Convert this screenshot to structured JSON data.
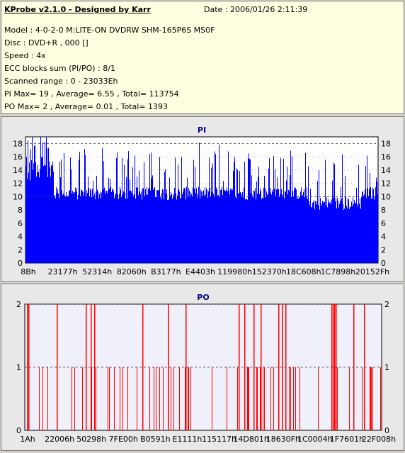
{
  "header": {
    "title": "KProbe v2.1.0 - Designed by Karr",
    "date": "Date : 2006/01/26 2:11:39",
    "lines": [
      "Model : 4-0-2-0 M:LITE-ON DVDRW SHM-165P6S MS0F",
      "Disc : DVD+R , 000 []",
      "Speed : 4x",
      "ECC blocks sum (PI/PO) : 8/1",
      "Scanned range : 0 - 23033Eh",
      "PI Max= 19 , Average= 6.55 , Total= 113754",
      "PO Max= 2 , Average= 0.01 , Total= 1393"
    ]
  },
  "chart_data": [
    {
      "type": "bar",
      "title": "PI",
      "ylim": [
        0,
        19
      ],
      "yticks": [
        "0",
        "2",
        "4",
        "6",
        "8",
        "10",
        "12",
        "14",
        "16",
        "18"
      ],
      "xticks": [
        "8Bh",
        "23177h",
        "52314h",
        "82060h",
        "B3177h",
        "E4403h",
        "119980h",
        "152370h",
        "18C608h",
        "1C7898h",
        "20152Fh"
      ],
      "grid": "dashed horizontal at 10 and 18",
      "colors": {
        "bar": "#0000ff",
        "plot_bg": "#ffffff"
      },
      "summary": {
        "max": 19,
        "average": 6.55,
        "total": 113754
      }
    },
    {
      "type": "bar",
      "title": "PO",
      "ylim": [
        0,
        2
      ],
      "yticks": [
        "0",
        "1",
        "2"
      ],
      "xticks": [
        "1Ah",
        "22006h",
        "50298h",
        "7FE00h",
        "B0591h",
        "E1111h",
        "115117h",
        "14D801h",
        "18630Fh",
        "1C0004h",
        "1F7601h",
        "22F008h"
      ],
      "grid": "dashed horizontal at 1 and 2",
      "colors": {
        "bar": "#ff0000",
        "plot_bg": "#f0f0fa"
      },
      "po2_fractions": [
        0.005,
        0.01,
        0.09,
        0.17,
        0.185,
        0.195,
        0.33,
        0.4,
        0.45,
        0.6,
        0.615,
        0.64,
        0.66,
        0.71,
        0.72,
        0.73,
        0.86,
        0.864,
        0.868,
        0.872,
        0.92,
        0.95
      ],
      "summary": {
        "max": 2,
        "average": 0.01,
        "total": 1393
      }
    }
  ]
}
